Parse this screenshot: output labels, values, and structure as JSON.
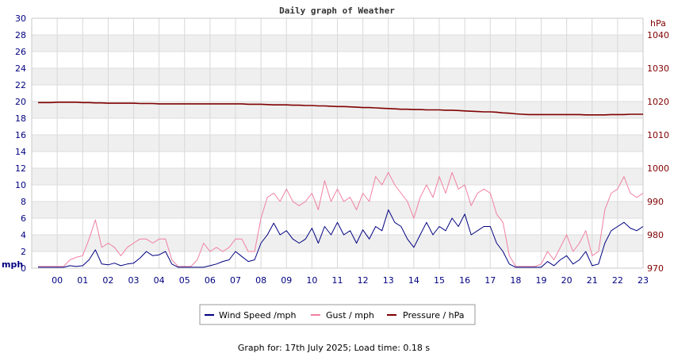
{
  "chart_data": {
    "type": "line",
    "title": "Daily graph of Weather",
    "x_ticks": [
      "00",
      "01",
      "02",
      "03",
      "04",
      "05",
      "06",
      "07",
      "08",
      "09",
      "10",
      "11",
      "12",
      "13",
      "14",
      "15",
      "16",
      "17",
      "18",
      "19",
      "20",
      "21",
      "22",
      "23"
    ],
    "left_axis": {
      "unit": "mph",
      "ylim": [
        0,
        30
      ],
      "ticks": [
        "0",
        "2",
        "4",
        "6",
        "8",
        "10",
        "12",
        "14",
        "16",
        "18",
        "20",
        "22",
        "24",
        "26",
        "28",
        "30"
      ]
    },
    "right_axis": {
      "unit": "hPa",
      "ylim": [
        970,
        1045
      ],
      "ticks": [
        "970",
        "980",
        "990",
        "1000",
        "1010",
        "1020",
        "1030",
        "1040"
      ]
    },
    "grid": true,
    "legend_position": "bottom",
    "x": [
      -0.75,
      -0.25,
      0,
      0.25,
      0.5,
      0.75,
      1,
      1.25,
      1.5,
      1.75,
      2,
      2.25,
      2.5,
      2.75,
      3,
      3.25,
      3.5,
      3.75,
      4,
      4.25,
      4.5,
      4.75,
      5,
      5.25,
      5.5,
      5.75,
      6,
      6.25,
      6.5,
      6.75,
      7,
      7.25,
      7.5,
      7.75,
      8,
      8.25,
      8.5,
      8.75,
      9,
      9.25,
      9.5,
      9.75,
      10,
      10.25,
      10.5,
      10.75,
      11,
      11.25,
      11.5,
      11.75,
      12,
      12.25,
      12.5,
      12.75,
      13,
      13.25,
      13.5,
      13.75,
      14,
      14.25,
      14.5,
      14.75,
      15,
      15.25,
      15.5,
      15.75,
      16,
      16.25,
      16.5,
      16.75,
      17,
      17.25,
      17.5,
      17.75,
      18,
      18.25,
      18.5,
      18.75,
      19,
      19.25,
      19.5,
      19.75,
      20,
      20.25,
      20.5,
      20.75,
      21,
      21.25,
      21.5,
      21.75,
      22,
      22.25,
      22.5,
      22.75,
      23
    ],
    "series": [
      {
        "name": "Wind Speed /mph",
        "color": "#000080",
        "axis": "left",
        "values": [
          0.1,
          0.1,
          0.1,
          0.1,
          0.3,
          0.2,
          0.3,
          1.0,
          2.2,
          0.5,
          0.4,
          0.6,
          0.3,
          0.5,
          0.6,
          1.2,
          2.0,
          1.5,
          1.6,
          2.0,
          0.5,
          0.1,
          0.1,
          0.1,
          0.1,
          0.1,
          0.3,
          0.5,
          0.8,
          1.0,
          2.0,
          1.4,
          0.8,
          1.0,
          3.0,
          4.0,
          5.4,
          4.0,
          4.5,
          3.5,
          3.0,
          3.5,
          4.8,
          3.0,
          5.0,
          4.0,
          5.5,
          4.0,
          4.5,
          3.0,
          4.6,
          3.5,
          5.0,
          4.5,
          7.0,
          5.5,
          5.0,
          3.5,
          2.5,
          4.0,
          5.5,
          4.0,
          5.0,
          4.5,
          6.0,
          5.0,
          6.5,
          4.0,
          4.5,
          5.0,
          5.0,
          3.0,
          2.0,
          0.5,
          0.1,
          0.1,
          0.1,
          0.1,
          0.1,
          0.8,
          0.3,
          1.0,
          1.5,
          0.5,
          1.0,
          2.0,
          0.3,
          0.5,
          3.0,
          4.5,
          5.0,
          5.5,
          4.8,
          4.5,
          5.0
        ]
      },
      {
        "name": "Gust / mph",
        "color": "#f080a0",
        "axis": "left",
        "values": [
          0.2,
          0.2,
          0.2,
          0.2,
          1.0,
          1.3,
          1.5,
          3.5,
          5.8,
          2.5,
          3.0,
          2.5,
          1.5,
          2.5,
          3.0,
          3.5,
          3.5,
          3.0,
          3.5,
          3.5,
          1.0,
          0.2,
          0.2,
          0.2,
          1.0,
          3.0,
          2.0,
          2.5,
          2.0,
          2.5,
          3.5,
          3.5,
          2.0,
          2.0,
          6.0,
          8.5,
          9.0,
          8.0,
          9.5,
          8.0,
          7.5,
          8.0,
          9.0,
          7.0,
          10.5,
          8.0,
          9.5,
          8.0,
          8.5,
          7.0,
          9.0,
          8.0,
          11.0,
          10.0,
          11.5,
          10.0,
          9.0,
          8.0,
          6.0,
          8.5,
          10.0,
          8.5,
          11.0,
          9.0,
          11.5,
          9.5,
          10.0,
          7.5,
          9.0,
          9.5,
          9.0,
          6.5,
          5.5,
          1.5,
          0.2,
          0.2,
          0.2,
          0.2,
          0.5,
          2.0,
          1.0,
          2.5,
          4.0,
          2.0,
          3.0,
          4.5,
          1.5,
          2.0,
          7.0,
          9.0,
          9.5,
          11.0,
          9.0,
          8.5,
          9.0
        ]
      },
      {
        "name": "Pressure / hPa",
        "color": "#800000",
        "axis": "right",
        "values": [
          1019.7,
          1019.7,
          1019.8,
          1019.8,
          1019.8,
          1019.8,
          1019.7,
          1019.7,
          1019.6,
          1019.6,
          1019.5,
          1019.5,
          1019.5,
          1019.5,
          1019.5,
          1019.4,
          1019.4,
          1019.4,
          1019.3,
          1019.3,
          1019.3,
          1019.3,
          1019.3,
          1019.3,
          1019.3,
          1019.3,
          1019.3,
          1019.3,
          1019.3,
          1019.3,
          1019.3,
          1019.3,
          1019.2,
          1019.2,
          1019.2,
          1019.1,
          1019.0,
          1019.0,
          1019.0,
          1018.9,
          1018.9,
          1018.8,
          1018.8,
          1018.7,
          1018.7,
          1018.6,
          1018.5,
          1018.5,
          1018.4,
          1018.3,
          1018.2,
          1018.2,
          1018.1,
          1018.0,
          1017.9,
          1017.8,
          1017.7,
          1017.7,
          1017.6,
          1017.6,
          1017.5,
          1017.5,
          1017.5,
          1017.4,
          1017.4,
          1017.3,
          1017.2,
          1017.1,
          1017.0,
          1016.9,
          1016.9,
          1016.8,
          1016.6,
          1016.5,
          1016.3,
          1016.2,
          1016.1,
          1016.1,
          1016.1,
          1016.1,
          1016.1,
          1016.1,
          1016.1,
          1016.1,
          1016.1,
          1016.0,
          1016.0,
          1016.0,
          1016.0,
          1016.1,
          1016.1,
          1016.1,
          1016.2,
          1016.2,
          1016.2
        ]
      }
    ]
  },
  "footer": {
    "text": "Graph for: 17th July 2025; Load time: 0.18 s"
  }
}
